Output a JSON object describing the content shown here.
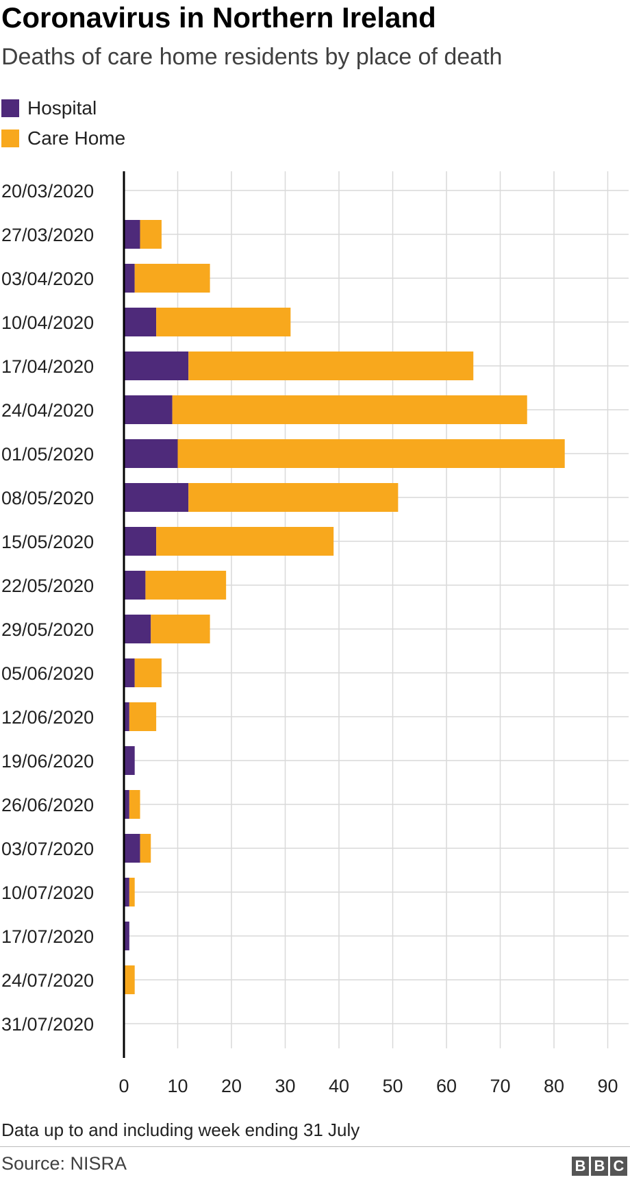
{
  "header": {
    "title": "Coronavirus in Northern Ireland",
    "subtitle": "Deaths of care home residents by place of death"
  },
  "legend": [
    {
      "label": "Hospital",
      "color": "#4e2a7a"
    },
    {
      "label": "Care Home",
      "color": "#f8a81d"
    }
  ],
  "footer": {
    "note": "Data up to and including week ending 31 July",
    "source": "Source: NISRA",
    "logo_letters": [
      "B",
      "B",
      "C"
    ]
  },
  "chart_data": {
    "type": "bar",
    "orientation": "horizontal",
    "stacked": true,
    "categories": [
      "20/03/2020",
      "27/03/2020",
      "03/04/2020",
      "10/04/2020",
      "17/04/2020",
      "24/04/2020",
      "01/05/2020",
      "08/05/2020",
      "15/05/2020",
      "22/05/2020",
      "29/05/2020",
      "05/06/2020",
      "12/06/2020",
      "19/06/2020",
      "26/06/2020",
      "03/07/2020",
      "10/07/2020",
      "17/07/2020",
      "24/07/2020",
      "31/07/2020"
    ],
    "series": [
      {
        "name": "Hospital",
        "color": "#4e2a7a",
        "values": [
          0,
          3,
          2,
          6,
          12,
          9,
          10,
          12,
          6,
          4,
          5,
          2,
          1,
          2,
          1,
          3,
          1,
          1,
          0,
          0
        ]
      },
      {
        "name": "Care Home",
        "color": "#f8a81d",
        "values": [
          0,
          4,
          14,
          25,
          53,
          66,
          72,
          39,
          33,
          15,
          11,
          5,
          5,
          0,
          2,
          2,
          1,
          0,
          2,
          0
        ]
      }
    ],
    "xlim": [
      0,
      90
    ],
    "xticks": [
      0,
      10,
      20,
      30,
      40,
      50,
      60,
      70,
      80,
      90
    ],
    "grid": true,
    "legend_position": "top-left"
  }
}
